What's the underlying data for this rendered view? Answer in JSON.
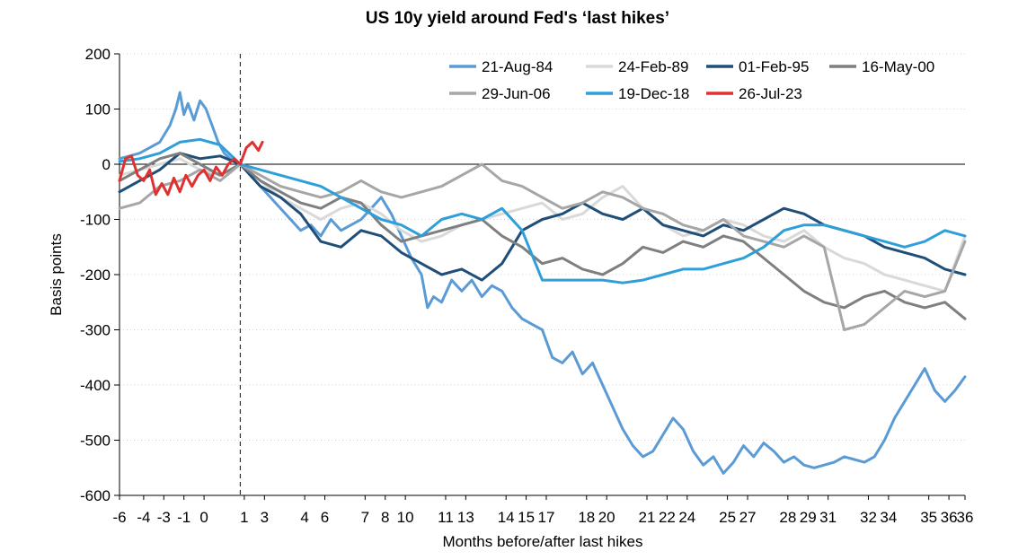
{
  "chart_data": {
    "type": "line",
    "title": "US 10y yield around Fed's ‘last hikes’",
    "xlabel": "Months before/after last hikes",
    "ylabel": "Basis points",
    "ylim": [
      -600,
      200
    ],
    "yticks": [
      200,
      100,
      0,
      -100,
      -200,
      -300,
      -400,
      -500,
      -600
    ],
    "xticks": [
      "-6",
      "-4",
      "-3",
      "-1",
      "0",
      "1",
      "3",
      "4",
      "6",
      "7",
      "8",
      "10",
      "11",
      "13",
      "14",
      "15",
      "17",
      "18",
      "20",
      "21",
      "22",
      "24",
      "25",
      "27",
      "28",
      "29",
      "31",
      "32",
      "34",
      "35",
      "36"
    ],
    "xtick_values": [
      -6,
      -4.8,
      -3.8,
      -2.8,
      -1.8,
      0.2,
      1.2,
      3.2,
      4.2,
      6.2,
      7.2,
      8.2,
      10.2,
      11.2,
      13.2,
      14.2,
      15.2,
      17.2,
      18.2,
      20.2,
      21.2,
      22.2,
      24.2,
      25.2,
      27.2,
      28.2,
      29.2,
      31.2,
      32.2,
      34.2,
      35.2
    ],
    "xlim": [
      -6,
      36
    ],
    "vline_x": 0,
    "grid": "horizontal-dotted",
    "legend_position": "top",
    "series": [
      {
        "name": "21-Aug-84",
        "color": "#5B9BD5",
        "x": [
          -6,
          -5.5,
          -5,
          -4.5,
          -4,
          -3.5,
          -3.2,
          -3,
          -2.8,
          -2.6,
          -2.3,
          -2,
          -1.7,
          -1.4,
          -1.1,
          -0.8,
          -0.5,
          0,
          0.5,
          1,
          1.5,
          2,
          2.5,
          3,
          3.5,
          4,
          4.5,
          5,
          5.5,
          6,
          6.5,
          7,
          7.5,
          8,
          8.5,
          9,
          9.3,
          9.6,
          10,
          10.5,
          11,
          11.5,
          12,
          12.5,
          13,
          13.5,
          14,
          14.5,
          15,
          15.5,
          16,
          16.5,
          17,
          17.5,
          18,
          18.5,
          19,
          19.5,
          20,
          20.5,
          21,
          21.5,
          22,
          22.5,
          23,
          23.5,
          24,
          24.5,
          25,
          25.5,
          26,
          26.5,
          27,
          27.5,
          28,
          28.5,
          29,
          29.5,
          30,
          30.5,
          31,
          31.5,
          32,
          32.5,
          33,
          33.5,
          34,
          34.5,
          35,
          35.5,
          36
        ],
        "y": [
          10,
          15,
          20,
          30,
          40,
          70,
          100,
          130,
          90,
          110,
          80,
          115,
          100,
          70,
          40,
          20,
          10,
          0,
          -20,
          -40,
          -60,
          -80,
          -100,
          -120,
          -110,
          -130,
          -100,
          -120,
          -110,
          -100,
          -80,
          -60,
          -90,
          -130,
          -170,
          -200,
          -260,
          -240,
          -250,
          -210,
          -230,
          -210,
          -240,
          -220,
          -230,
          -260,
          -280,
          -290,
          -300,
          -350,
          -360,
          -340,
          -380,
          -360,
          -400,
          -440,
          -480,
          -510,
          -530,
          -520,
          -490,
          -460,
          -480,
          -520,
          -545,
          -530,
          -560,
          -540,
          -510,
          -530,
          -505,
          -520,
          -540,
          -530,
          -545,
          -550,
          -545,
          -540,
          -530,
          -535,
          -540,
          -530,
          -500,
          -460,
          -430,
          -400,
          -370,
          -410,
          -430,
          -410,
          -385
        ]
      },
      {
        "name": "24-Feb-89",
        "color": "#D9D9D9",
        "x": [
          -6,
          -5,
          -4,
          -3,
          -2,
          -1,
          0,
          1,
          2,
          3,
          4,
          5,
          6,
          7,
          8,
          9,
          10,
          11,
          12,
          13,
          14,
          15,
          16,
          17,
          18,
          19,
          20,
          21,
          22,
          23,
          24,
          25,
          26,
          27,
          28,
          29,
          30,
          31,
          32,
          33,
          34,
          35,
          36
        ],
        "y": [
          -20,
          -10,
          0,
          10,
          -10,
          -20,
          0,
          -30,
          -60,
          -80,
          -100,
          -80,
          -70,
          -90,
          -120,
          -140,
          -130,
          -110,
          -100,
          -90,
          -80,
          -70,
          -100,
          -90,
          -60,
          -40,
          -80,
          -110,
          -130,
          -120,
          -100,
          -110,
          -130,
          -140,
          -120,
          -150,
          -170,
          -180,
          -200,
          -210,
          -220,
          -230,
          -130
        ]
      },
      {
        "name": "01-Feb-95",
        "color": "#1F4E79",
        "x": [
          -6,
          -5,
          -4,
          -3,
          -2,
          -1,
          0,
          1,
          2,
          3,
          4,
          5,
          6,
          7,
          8,
          9,
          10,
          11,
          12,
          13,
          14,
          15,
          16,
          17,
          18,
          19,
          20,
          21,
          22,
          23,
          24,
          25,
          26,
          27,
          28,
          29,
          30,
          31,
          32,
          33,
          34,
          35,
          36
        ],
        "y": [
          -50,
          -30,
          -10,
          20,
          10,
          15,
          0,
          -40,
          -60,
          -90,
          -140,
          -150,
          -120,
          -130,
          -160,
          -180,
          -200,
          -190,
          -210,
          -180,
          -120,
          -100,
          -90,
          -70,
          -90,
          -100,
          -80,
          -110,
          -120,
          -130,
          -110,
          -120,
          -100,
          -80,
          -90,
          -110,
          -120,
          -130,
          -150,
          -160,
          -170,
          -190,
          -200
        ]
      },
      {
        "name": "16-May-00",
        "color": "#7F7F7F",
        "x": [
          -6,
          -5,
          -4,
          -3,
          -2,
          -1,
          0,
          1,
          2,
          3,
          4,
          5,
          6,
          7,
          8,
          9,
          10,
          11,
          12,
          13,
          14,
          15,
          16,
          17,
          18,
          19,
          20,
          21,
          22,
          23,
          24,
          25,
          26,
          27,
          28,
          29,
          30,
          31,
          32,
          33,
          34,
          35,
          36
        ],
        "y": [
          -30,
          -10,
          10,
          20,
          0,
          -20,
          0,
          -30,
          -50,
          -70,
          -80,
          -60,
          -70,
          -110,
          -140,
          -130,
          -120,
          -110,
          -100,
          -130,
          -150,
          -180,
          -170,
          -190,
          -200,
          -180,
          -150,
          -160,
          -140,
          -150,
          -130,
          -140,
          -170,
          -200,
          -230,
          -250,
          -260,
          -240,
          -230,
          -250,
          -260,
          -250,
          -280
        ]
      },
      {
        "name": "29-Jun-06",
        "color": "#A6A6A6",
        "x": [
          -6,
          -5,
          -4,
          -3,
          -2,
          -1,
          0,
          1,
          2,
          3,
          4,
          5,
          6,
          7,
          8,
          9,
          10,
          11,
          12,
          13,
          14,
          15,
          16,
          17,
          18,
          19,
          20,
          21,
          22,
          23,
          24,
          25,
          26,
          27,
          28,
          29,
          30,
          31,
          32,
          33,
          34,
          35,
          36
        ],
        "y": [
          -80,
          -70,
          -40,
          -30,
          -10,
          -30,
          0,
          -20,
          -40,
          -50,
          -60,
          -50,
          -30,
          -50,
          -60,
          -50,
          -40,
          -20,
          0,
          -30,
          -40,
          -60,
          -80,
          -70,
          -50,
          -60,
          -80,
          -90,
          -110,
          -120,
          -100,
          -130,
          -140,
          -150,
          -130,
          -150,
          -300,
          -290,
          -260,
          -230,
          -240,
          -230,
          -140
        ]
      },
      {
        "name": "19-Dec-18",
        "color": "#2E9FD9",
        "x": [
          -6,
          -5,
          -4,
          -3,
          -2,
          -1,
          0,
          1,
          2,
          3,
          4,
          5,
          6,
          7,
          8,
          9,
          10,
          11,
          12,
          13,
          14,
          15,
          16,
          17,
          18,
          19,
          20,
          21,
          22,
          23,
          24,
          25,
          26,
          27,
          28,
          29,
          30,
          31,
          32,
          33,
          34,
          35,
          36
        ],
        "y": [
          5,
          10,
          20,
          40,
          45,
          35,
          0,
          -10,
          -20,
          -30,
          -40,
          -60,
          -80,
          -100,
          -110,
          -130,
          -100,
          -90,
          -100,
          -80,
          -120,
          -210,
          -210,
          -210,
          -210,
          -215,
          -210,
          -200,
          -190,
          -190,
          -180,
          -170,
          -150,
          -120,
          -110,
          -110,
          -120,
          -130,
          -140,
          -150,
          -140,
          -120,
          -130
        ]
      },
      {
        "name": "26-Jul-23",
        "color": "#E03131",
        "x": [
          -6,
          -5.7,
          -5.4,
          -5.1,
          -4.8,
          -4.5,
          -4.2,
          -3.9,
          -3.6,
          -3.3,
          -3,
          -2.7,
          -2.4,
          -2.1,
          -1.8,
          -1.5,
          -1.2,
          -0.9,
          -0.6,
          -0.3,
          0,
          0.3,
          0.6,
          0.9,
          1.1
        ],
        "y": [
          -30,
          10,
          15,
          -20,
          -30,
          -10,
          -55,
          -35,
          -55,
          -25,
          -50,
          -20,
          -40,
          -20,
          -10,
          -30,
          -5,
          -20,
          0,
          10,
          0,
          30,
          40,
          25,
          40
        ]
      }
    ]
  }
}
